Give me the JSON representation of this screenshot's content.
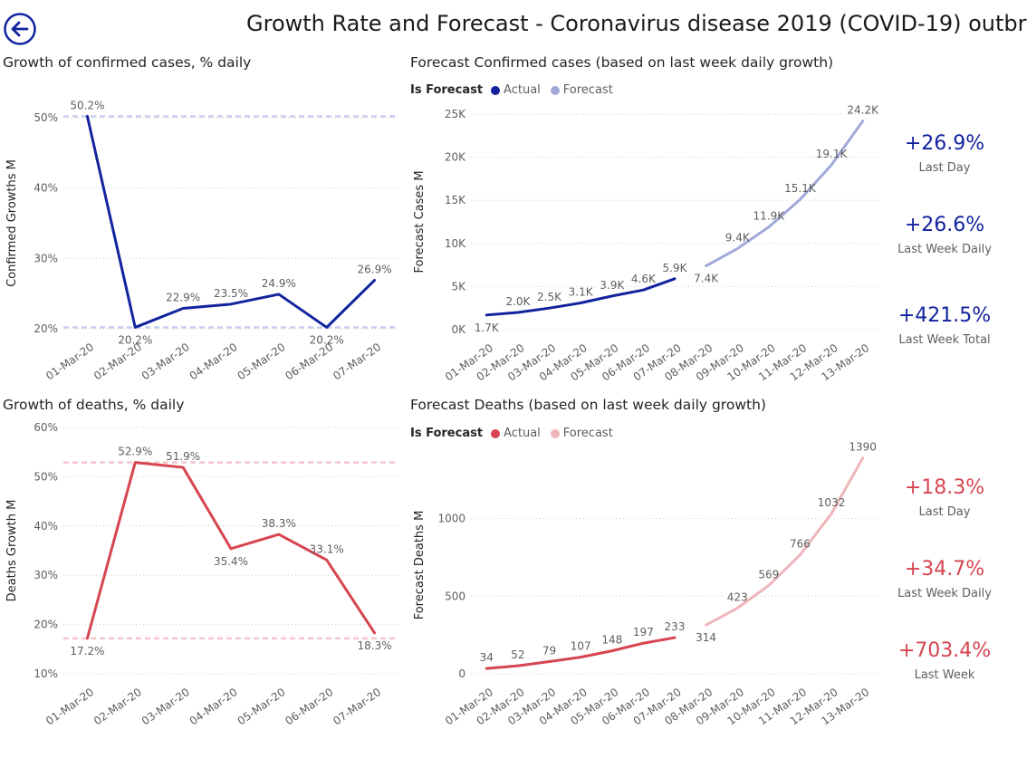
{
  "page": {
    "title": "Growth Rate and Forecast - Coronavirus disease 2019 (COVID-19) outbr",
    "back_icon": "back-arrow-icon",
    "colors": {
      "blue": "#12239e",
      "blue_light": "#a0a9da",
      "red": "#d64550",
      "red_light": "#efb5ba",
      "blue_ref": "#c8cdf2",
      "red_ref": "#f5c6cb"
    }
  },
  "kpis_confirmed": [
    {
      "value": "+26.9%",
      "label": "Last Day"
    },
    {
      "value": "+26.6%",
      "label": "Last Week Daily"
    },
    {
      "value": "+421.5%",
      "label": "Last Week Total"
    }
  ],
  "kpis_deaths": [
    {
      "value": "+18.3%",
      "label": "Last Day"
    },
    {
      "value": "+34.7%",
      "label": "Last Week Daily"
    },
    {
      "value": "+703.4%",
      "label": "Last Week"
    }
  ],
  "chart_data": [
    {
      "id": "confirmed_growth",
      "type": "line",
      "title": "Growth of confirmed cases, % daily",
      "xlabel": "",
      "ylabel": "Confirmed Growths M",
      "categories": [
        "01-Mar-20",
        "02-Mar-20",
        "03-Mar-20",
        "04-Mar-20",
        "05-Mar-20",
        "06-Mar-20",
        "07-Mar-20"
      ],
      "series": [
        {
          "name": "Growth",
          "values": [
            50.2,
            20.2,
            22.9,
            23.5,
            24.9,
            20.2,
            26.9
          ]
        }
      ],
      "data_labels": [
        "50.2%",
        "20.2%",
        "22.9%",
        "23.5%",
        "24.9%",
        "20.2%",
        "26.9%"
      ],
      "ylim": [
        20,
        50
      ],
      "yticks": [
        20,
        30,
        40,
        50
      ],
      "ytick_labels": [
        "20%",
        "30%",
        "40%",
        "50%"
      ],
      "ref_lines": [
        50.2,
        20.2
      ]
    },
    {
      "id": "confirmed_forecast",
      "type": "line",
      "title": "Forecast Confirmed cases (based on last week daily growth)",
      "legend_title": "Is Forecast",
      "legend": [
        "Actual",
        "Forecast"
      ],
      "xlabel": "",
      "ylabel": "Forecast Cases M",
      "categories": [
        "01-Mar-20",
        "02-Mar-20",
        "03-Mar-20",
        "04-Mar-20",
        "05-Mar-20",
        "06-Mar-20",
        "07-Mar-20",
        "08-Mar-20",
        "09-Mar-20",
        "10-Mar-20",
        "11-Mar-20",
        "12-Mar-20",
        "13-Mar-20"
      ],
      "series": [
        {
          "name": "Actual",
          "values": [
            1700,
            2000,
            2500,
            3100,
            3900,
            4600,
            5900,
            null,
            null,
            null,
            null,
            null,
            null
          ]
        },
        {
          "name": "Forecast",
          "values": [
            null,
            null,
            null,
            null,
            null,
            null,
            null,
            7400,
            9400,
            11900,
            15100,
            19100,
            24200
          ]
        }
      ],
      "data_labels": [
        "1.7K",
        "2.0K",
        "2.5K",
        "3.1K",
        "3.9K",
        "4.6K",
        "5.9K",
        "7.4K",
        "9.4K",
        "11.9K",
        "15.1K",
        "19.1K",
        "24.2K"
      ],
      "ylim": [
        0,
        25000
      ],
      "yticks": [
        0,
        5000,
        10000,
        15000,
        20000,
        25000
      ],
      "ytick_labels": [
        "0K",
        "5K",
        "10K",
        "15K",
        "20K",
        "25K"
      ]
    },
    {
      "id": "deaths_growth",
      "type": "line",
      "title": "Growth of deaths, % daily",
      "xlabel": "",
      "ylabel": "Deaths Growth M",
      "categories": [
        "01-Mar-20",
        "02-Mar-20",
        "03-Mar-20",
        "04-Mar-20",
        "05-Mar-20",
        "06-Mar-20",
        "07-Mar-20"
      ],
      "series": [
        {
          "name": "Growth",
          "values": [
            17.2,
            52.9,
            51.9,
            35.4,
            38.3,
            33.1,
            18.3
          ]
        }
      ],
      "data_labels": [
        "17.2%",
        "52.9%",
        "51.9%",
        "35.4%",
        "38.3%",
        "33.1%",
        "18.3%"
      ],
      "ylim": [
        10,
        60
      ],
      "yticks": [
        10,
        20,
        30,
        40,
        50,
        60
      ],
      "ytick_labels": [
        "10%",
        "20%",
        "30%",
        "40%",
        "50%",
        "60%"
      ],
      "ref_lines": [
        52.9,
        17.2
      ]
    },
    {
      "id": "deaths_forecast",
      "type": "line",
      "title": "Forecast Deaths (based on last week daily growth)",
      "legend_title": "Is Forecast",
      "legend": [
        "Actual",
        "Forecast"
      ],
      "xlabel": "",
      "ylabel": "Forecast Deaths M",
      "categories": [
        "01-Mar-20",
        "02-Mar-20",
        "03-Mar-20",
        "04-Mar-20",
        "05-Mar-20",
        "06-Mar-20",
        "07-Mar-20",
        "08-Mar-20",
        "09-Mar-20",
        "10-Mar-20",
        "11-Mar-20",
        "12-Mar-20",
        "13-Mar-20"
      ],
      "series": [
        {
          "name": "Actual",
          "values": [
            34,
            52,
            79,
            107,
            148,
            197,
            233,
            null,
            null,
            null,
            null,
            null,
            null
          ]
        },
        {
          "name": "Forecast",
          "values": [
            null,
            null,
            null,
            null,
            null,
            null,
            null,
            314,
            423,
            569,
            766,
            1032,
            1390
          ]
        }
      ],
      "data_labels": [
        "34",
        "52",
        "79",
        "107",
        "148",
        "197",
        "233",
        "314",
        "423",
        "569",
        "766",
        "1032",
        "1390"
      ],
      "ylim": [
        0,
        1400
      ],
      "yticks": [
        0,
        500,
        1000
      ],
      "ytick_labels": [
        "0",
        "500",
        "1000"
      ]
    }
  ]
}
